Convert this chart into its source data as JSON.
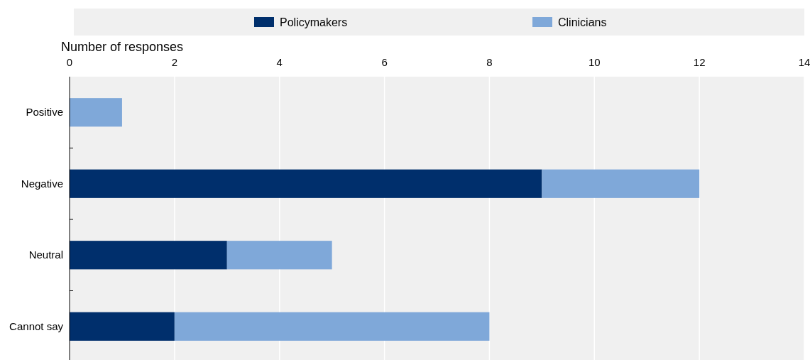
{
  "chart_data": {
    "type": "bar",
    "orientation": "horizontal",
    "stacked": true,
    "xlabel": "Number of responses",
    "categories": [
      "Positive",
      "Negative",
      "Neutral",
      "Cannot say"
    ],
    "series": [
      {
        "name": "Policymakers",
        "color": "#002f6c",
        "values": [
          0,
          9,
          3,
          2
        ]
      },
      {
        "name": "Clinicians",
        "color": "#7fa8d9",
        "values": [
          1,
          3,
          2,
          6
        ]
      }
    ],
    "xlim": [
      0,
      14
    ],
    "xticks": [
      0,
      2,
      4,
      6,
      8,
      10,
      12,
      14
    ],
    "grid": "x",
    "legend": "top"
  }
}
